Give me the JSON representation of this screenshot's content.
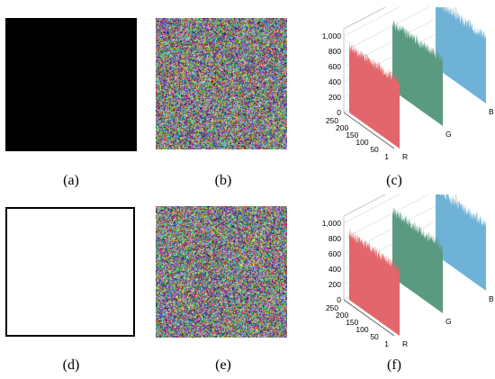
{
  "captions": {
    "a": "(a)",
    "b": "(b)",
    "c": "(c)",
    "d": "(d)",
    "e": "(e)",
    "f": "(f)"
  },
  "histogram": {
    "z_ticks": [
      "0",
      "200",
      "400",
      "600",
      "800",
      "1,000"
    ],
    "x_ticks": [
      "250",
      "200",
      "150",
      "100",
      "50",
      "1"
    ],
    "channels": [
      "R",
      "G",
      "B"
    ],
    "colors": {
      "R": "#e2666b",
      "G": "#5a9a80",
      "B": "#6fb2d8"
    }
  },
  "chart_data": [
    {
      "type": "bar",
      "title": "",
      "panel": "(c)",
      "xlabel": "",
      "ylabel": "",
      "x_range": [
        1,
        256
      ],
      "zlim": [
        0,
        1000
      ],
      "series": [
        {
          "name": "R",
          "approx_mean": 870,
          "approx_range": [
            800,
            950
          ]
        },
        {
          "name": "G",
          "approx_mean": 870,
          "approx_range": [
            800,
            950
          ]
        },
        {
          "name": "B",
          "approx_mean": 870,
          "approx_range": [
            800,
            950
          ]
        }
      ]
    },
    {
      "type": "bar",
      "title": "",
      "panel": "(f)",
      "xlabel": "",
      "ylabel": "",
      "x_range": [
        1,
        256
      ],
      "zlim": [
        0,
        1000
      ],
      "series": [
        {
          "name": "R",
          "approx_mean": 880,
          "approx_range": [
            800,
            950
          ]
        },
        {
          "name": "G",
          "approx_mean": 880,
          "approx_range": [
            800,
            950
          ]
        },
        {
          "name": "B",
          "approx_mean": 880,
          "approx_range": [
            800,
            950
          ]
        }
      ]
    }
  ]
}
